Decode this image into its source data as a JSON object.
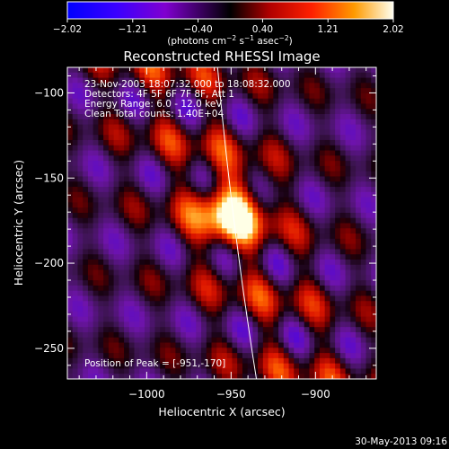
{
  "chart_data": {
    "type": "heatmap",
    "title": "Reconstructed RHESSI Image",
    "xlabel": "Heliocentric X (arcsec)",
    "ylabel": "Heliocentric Y (arcsec)",
    "xlim": [
      -1047,
      -864
    ],
    "ylim": [
      -268,
      -85
    ],
    "x_ticks": [
      -1000,
      -950,
      -900
    ],
    "x_tick_labels": [
      "−1000",
      "−950",
      "−900"
    ],
    "y_ticks": [
      -100,
      -150,
      -200,
      -250
    ],
    "y_tick_labels": [
      "−100",
      "−150",
      "−200",
      "−250"
    ],
    "colorbar": {
      "range": [
        -2.02,
        2.02
      ],
      "ticks": [
        -2.02,
        -1.21,
        -0.4,
        0.4,
        1.21,
        2.02
      ],
      "tick_labels": [
        "−2.02",
        "−1.21",
        "−0.40",
        "0.40",
        "1.21",
        "2.02"
      ],
      "unit_label": "(photons cm",
      "unit_exp1": "−2",
      "unit_mid": " s",
      "unit_exp2": "−1",
      "unit_end": " asec",
      "unit_exp3": "−2",
      "unit_close": ")",
      "colors": [
        "#0000ff",
        "#4a00ff",
        "#8a00c8",
        "#000000",
        "#a00000",
        "#ff2000",
        "#ff9000",
        "#ffffe0"
      ]
    },
    "peak": {
      "x": -951,
      "y": -170,
      "value": 2.02
    },
    "limb_line": [
      {
        "x": -958,
        "y": -85
      },
      {
        "x": -935,
        "y": -268
      }
    ],
    "annotations": [
      "23-Nov-2003 18:07:32.000 to 18:08:32.000",
      "Detectors: 4F 5F 6F 7F 8F, Att 1",
      "Energy Range: 6.0 - 12.0 keV",
      "Clean     Total counts: 1.40E+04"
    ],
    "peak_label": "Position of Peak = [-951,-170]",
    "timestamp": "30-May-2013 09:16"
  }
}
